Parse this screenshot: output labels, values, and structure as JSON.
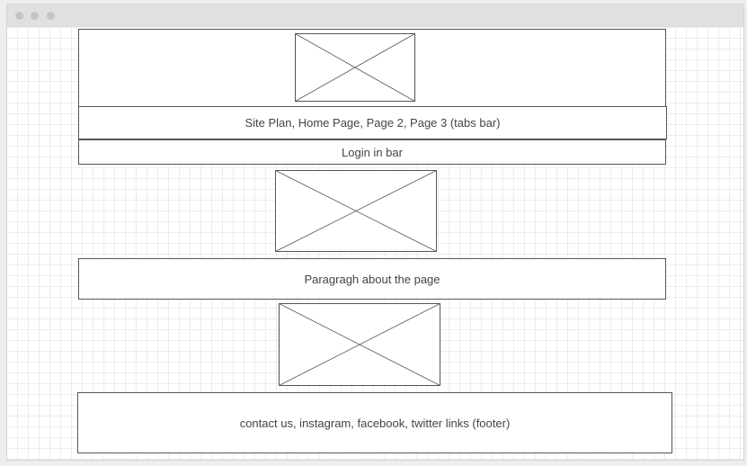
{
  "window": {
    "controls": [
      "close-dot",
      "minimize-dot",
      "maximize-dot"
    ]
  },
  "wireframe": {
    "tabs_bar": "Site Plan, Home Page, Page 2, Page 3 (tabs bar)",
    "login_bar": "Login in bar",
    "paragraph": "Paragragh about the page",
    "footer": "contact us, instagram, facebook, twitter links (footer)"
  },
  "colors": {
    "stroke": "#555555",
    "grid": "#ececec",
    "text": "#444444"
  }
}
